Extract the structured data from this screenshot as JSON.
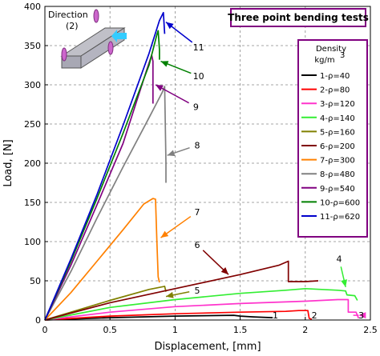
{
  "chart_data": {
    "type": "line",
    "title": "Three point bending tests",
    "xlabel": "Displacement, [mm]",
    "ylabel": "Load, [N]",
    "xlim": [
      0,
      2.5
    ],
    "ylim": [
      0,
      400
    ],
    "xticks": [
      "0",
      "0.5",
      "1",
      "1.5",
      "2",
      "2.5"
    ],
    "yticks": [
      "0",
      "50",
      "100",
      "150",
      "200",
      "250",
      "300",
      "350",
      "400"
    ],
    "grid": "dashed",
    "legend": {
      "position": "right",
      "title_line1": "Density",
      "title_line2": "kg/m",
      "title_sup": "3"
    },
    "inset": {
      "label_line1": "Direction",
      "label_line2": "(2)"
    },
    "series": [
      {
        "name": "1-ρ=40",
        "label": "1",
        "color": "#000000",
        "points": [
          [
            0,
            0
          ],
          [
            0.5,
            3
          ],
          [
            1.0,
            5
          ],
          [
            1.45,
            6
          ],
          [
            1.5,
            5
          ],
          [
            1.6,
            4
          ],
          [
            1.75,
            3
          ]
        ]
      },
      {
        "name": "2-ρ=80",
        "label": "2",
        "color": "#ff0000",
        "points": [
          [
            0,
            0
          ],
          [
            0.5,
            5
          ],
          [
            1.0,
            8
          ],
          [
            1.5,
            10
          ],
          [
            1.85,
            11
          ],
          [
            1.95,
            12
          ],
          [
            2.02,
            12
          ],
          [
            2.03,
            2
          ],
          [
            2.05,
            1
          ]
        ]
      },
      {
        "name": "3-ρ=120",
        "label": "3",
        "color": "#ff33cc",
        "points": [
          [
            0,
            0
          ],
          [
            0.5,
            10
          ],
          [
            1.0,
            17
          ],
          [
            1.5,
            21
          ],
          [
            2.0,
            24
          ],
          [
            2.25,
            26
          ],
          [
            2.33,
            26
          ],
          [
            2.33,
            10
          ],
          [
            2.39,
            10
          ],
          [
            2.41,
            2
          ]
        ]
      },
      {
        "name": "4-ρ=140",
        "label": "4",
        "color": "#33ee33",
        "points": [
          [
            0,
            0
          ],
          [
            0.5,
            16
          ],
          [
            1.0,
            26
          ],
          [
            1.5,
            34
          ],
          [
            1.85,
            38
          ],
          [
            2.0,
            40
          ],
          [
            2.25,
            38
          ],
          [
            2.31,
            37
          ],
          [
            2.32,
            32
          ],
          [
            2.38,
            31
          ],
          [
            2.4,
            25
          ]
        ]
      },
      {
        "name": "5-ρ=160",
        "label": "5",
        "color": "#808000",
        "points": [
          [
            0,
            0
          ],
          [
            0.2,
            10
          ],
          [
            0.5,
            25
          ],
          [
            0.8,
            39
          ],
          [
            0.92,
            43
          ],
          [
            0.93,
            36
          ]
        ]
      },
      {
        "name": "6-ρ=200",
        "label": "6",
        "color": "#800000",
        "points": [
          [
            0,
            0
          ],
          [
            0.5,
            22
          ],
          [
            1.0,
            40
          ],
          [
            1.5,
            58
          ],
          [
            1.8,
            70
          ],
          [
            1.87,
            75
          ],
          [
            1.87,
            49
          ],
          [
            2.0,
            49
          ],
          [
            2.1,
            50
          ]
        ]
      },
      {
        "name": "7-ρ=300",
        "label": "7",
        "color": "#ff8000",
        "points": [
          [
            0,
            0
          ],
          [
            0.2,
            35
          ],
          [
            0.4,
            75
          ],
          [
            0.6,
            115
          ],
          [
            0.76,
            148
          ],
          [
            0.83,
            155
          ],
          [
            0.85,
            154
          ],
          [
            0.86,
            100
          ],
          [
            0.87,
            55
          ],
          [
            0.88,
            48
          ]
        ]
      },
      {
        "name": "8-ρ=480",
        "label": "8",
        "color": "#808080",
        "points": [
          [
            0,
            0
          ],
          [
            0.2,
            62
          ],
          [
            0.4,
            130
          ],
          [
            0.6,
            195
          ],
          [
            0.8,
            258
          ],
          [
            0.9,
            290
          ],
          [
            0.92,
            298
          ],
          [
            0.93,
            200
          ],
          [
            0.93,
            175
          ]
        ]
      },
      {
        "name": "9-ρ=540",
        "label": "9",
        "color": "#800080",
        "points": [
          [
            0,
            0
          ],
          [
            0.2,
            70
          ],
          [
            0.4,
            147
          ],
          [
            0.6,
            225
          ],
          [
            0.78,
            318
          ],
          [
            0.82,
            338
          ],
          [
            0.83,
            330
          ],
          [
            0.83,
            276
          ]
        ]
      },
      {
        "name": "10-ρ=600",
        "label": "10",
        "color": "#008000",
        "points": [
          [
            0,
            0
          ],
          [
            0.2,
            75
          ],
          [
            0.4,
            155
          ],
          [
            0.6,
            238
          ],
          [
            0.8,
            325
          ],
          [
            0.86,
            364
          ],
          [
            0.87,
            369
          ],
          [
            0.88,
            345
          ],
          [
            0.88,
            332
          ]
        ]
      },
      {
        "name": "11-ρ=620",
        "label": "11",
        "color": "#0000cc",
        "points": [
          [
            0,
            0
          ],
          [
            0.2,
            78
          ],
          [
            0.4,
            160
          ],
          [
            0.6,
            248
          ],
          [
            0.8,
            340
          ],
          [
            0.88,
            382
          ],
          [
            0.91,
            392
          ],
          [
            0.92,
            365
          ]
        ]
      }
    ],
    "annotations": [
      {
        "text": "11",
        "color": "#0000cc",
        "tx": 1.18,
        "ty": 348,
        "ax": 0.93,
        "ay": 380
      },
      {
        "text": "10",
        "color": "#008000",
        "tx": 1.18,
        "ty": 311,
        "ax": 0.89,
        "ay": 330
      },
      {
        "text": "9",
        "color": "#800080",
        "tx": 1.16,
        "ty": 272,
        "ax": 0.85,
        "ay": 300
      },
      {
        "text": "8",
        "color": "#808080",
        "tx": 1.17,
        "ty": 223,
        "ax": 0.94,
        "ay": 210
      },
      {
        "text": "7",
        "color": "#ff8000",
        "tx": 1.17,
        "ty": 138,
        "ax": 0.89,
        "ay": 105
      },
      {
        "text": "6",
        "color": "#800000",
        "tx": 1.17,
        "ty": 96,
        "ax": 1.41,
        "ay": 58
      },
      {
        "text": "5",
        "color": "#808000",
        "tx": 1.17,
        "ty": 38,
        "ax": 0.93,
        "ay": 30
      },
      {
        "text": "4",
        "color": "#33ee33",
        "tx": 2.26,
        "ty": 78,
        "ax": 2.31,
        "ay": 42
      },
      {
        "text": "3",
        "color": "#ff33cc",
        "tx": 2.43,
        "ty": 6,
        "ax": 2.41,
        "ay": 6
      },
      {
        "text": "2",
        "color": "#ff0000",
        "tx": 2.07,
        "ty": 6,
        "ax": 2.07,
        "ay": 6
      },
      {
        "text": "1",
        "color": "#000000",
        "tx": 1.77,
        "ty": 6,
        "ax": 1.77,
        "ay": 6
      }
    ]
  }
}
